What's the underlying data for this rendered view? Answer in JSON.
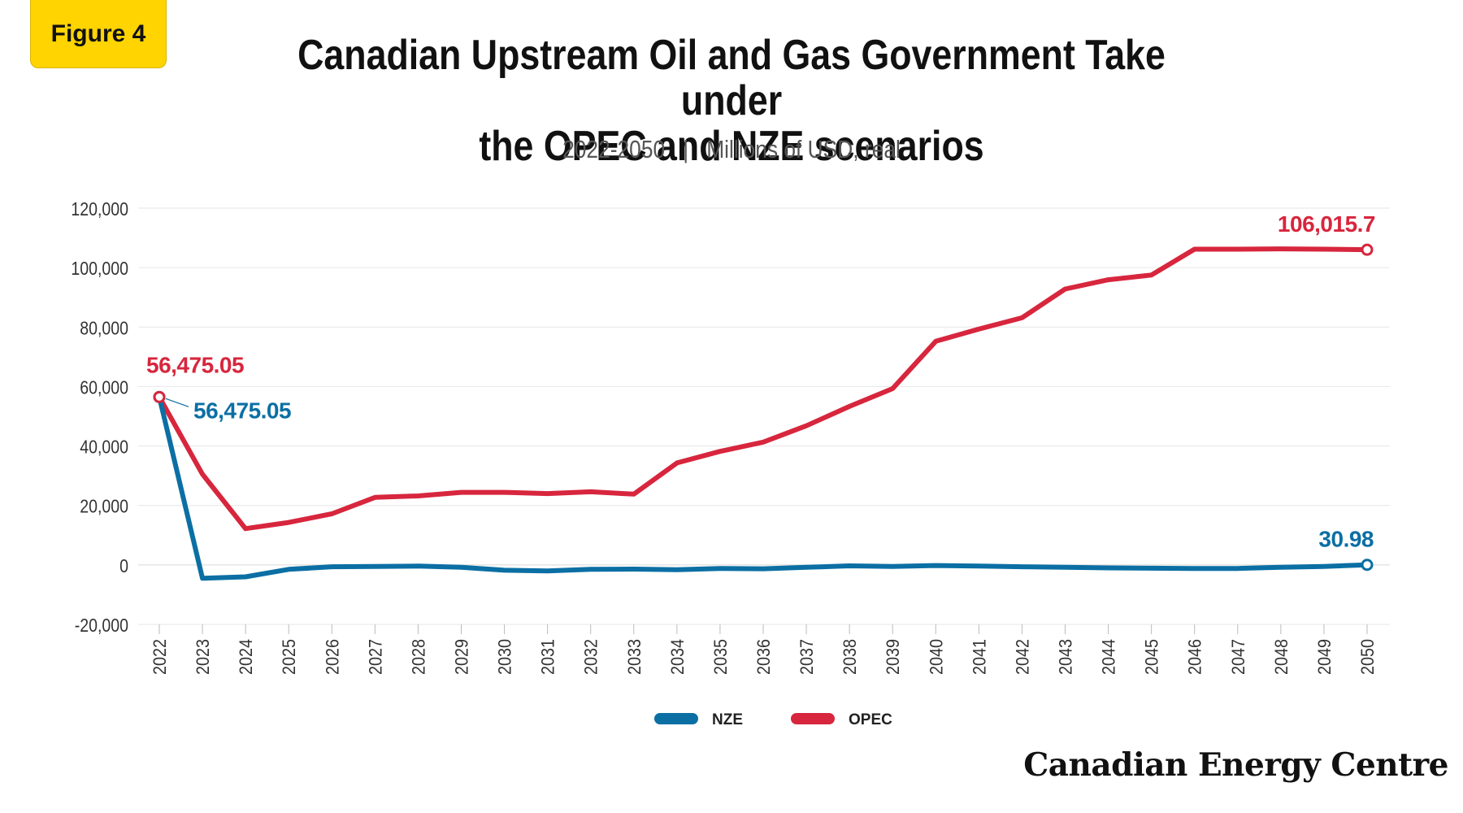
{
  "figure_label": "Figure 4",
  "brand": "Canadian Energy Centre",
  "chart_data": {
    "type": "line",
    "title": "Canadian Upstream Oil and Gas Government Take under the OPEC and NZE scenarios",
    "title_lines": [
      "Canadian Upstream Oil and Gas Government Take under",
      "the OPEC and NZE scenarios"
    ],
    "subtitle": {
      "period": "2022-2050",
      "separator": "|",
      "unit": "Millions of USD, real"
    },
    "x": [
      2022,
      2023,
      2024,
      2025,
      2026,
      2027,
      2028,
      2029,
      2030,
      2031,
      2032,
      2033,
      2034,
      2035,
      2036,
      2037,
      2038,
      2039,
      2040,
      2041,
      2042,
      2043,
      2044,
      2045,
      2046,
      2047,
      2048,
      2049,
      2050
    ],
    "x_tick_labels": [
      "2022",
      "2023",
      "2024",
      "2025",
      "2026",
      "2027",
      "2028",
      "2029",
      "2030",
      "2031",
      "2032",
      "2033",
      "2034",
      "2035",
      "2036",
      "2037",
      "2038",
      "2039",
      "2040",
      "2041",
      "2042",
      "2043",
      "2044",
      "2045",
      "2046",
      "2047",
      "2048",
      "2049",
      "2050"
    ],
    "ylim": [
      -20000,
      120000
    ],
    "y_ticks": [
      -20000,
      0,
      20000,
      40000,
      60000,
      80000,
      100000,
      120000
    ],
    "y_tick_labels": [
      "-20,000",
      "0",
      "20,000",
      "40,000",
      "60,000",
      "80,000",
      "100,000",
      "120,000"
    ],
    "grid": true,
    "legend_position": "bottom-center",
    "series": [
      {
        "name": "NZE",
        "color": "#0B6FA4",
        "values": [
          56475.05,
          -4500,
          -4000,
          -1500,
          -600,
          -500,
          -400,
          -800,
          -1800,
          -2000,
          -1500,
          -1400,
          -1600,
          -1200,
          -1300,
          -800,
          -300,
          -500,
          -200,
          -400,
          -600,
          -800,
          -1000,
          -1100,
          -1200,
          -1200,
          -800,
          -500,
          30.98
        ]
      },
      {
        "name": "OPEC",
        "color": "#D7263D",
        "values": [
          56475.05,
          30500,
          12200,
          14300,
          17200,
          22700,
          23200,
          24400,
          24400,
          24000,
          24600,
          23800,
          34300,
          38200,
          41300,
          46800,
          53300,
          59300,
          75200,
          79300,
          83100,
          92800,
          95900,
          97500,
          106200,
          106200,
          106300,
          106200,
          106015.7
        ]
      }
    ],
    "annotations": [
      {
        "series": "OPEC",
        "x": 2022,
        "text": "56,475.05",
        "color": "#D7263D"
      },
      {
        "series": "NZE",
        "x": 2022,
        "text": "56,475.05",
        "color": "#0B6FA4"
      },
      {
        "series": "OPEC",
        "x": 2050,
        "text": "106,015.7",
        "color": "#D7263D"
      },
      {
        "series": "NZE",
        "x": 2050,
        "text": "30.98",
        "color": "#0B6FA4"
      }
    ]
  }
}
